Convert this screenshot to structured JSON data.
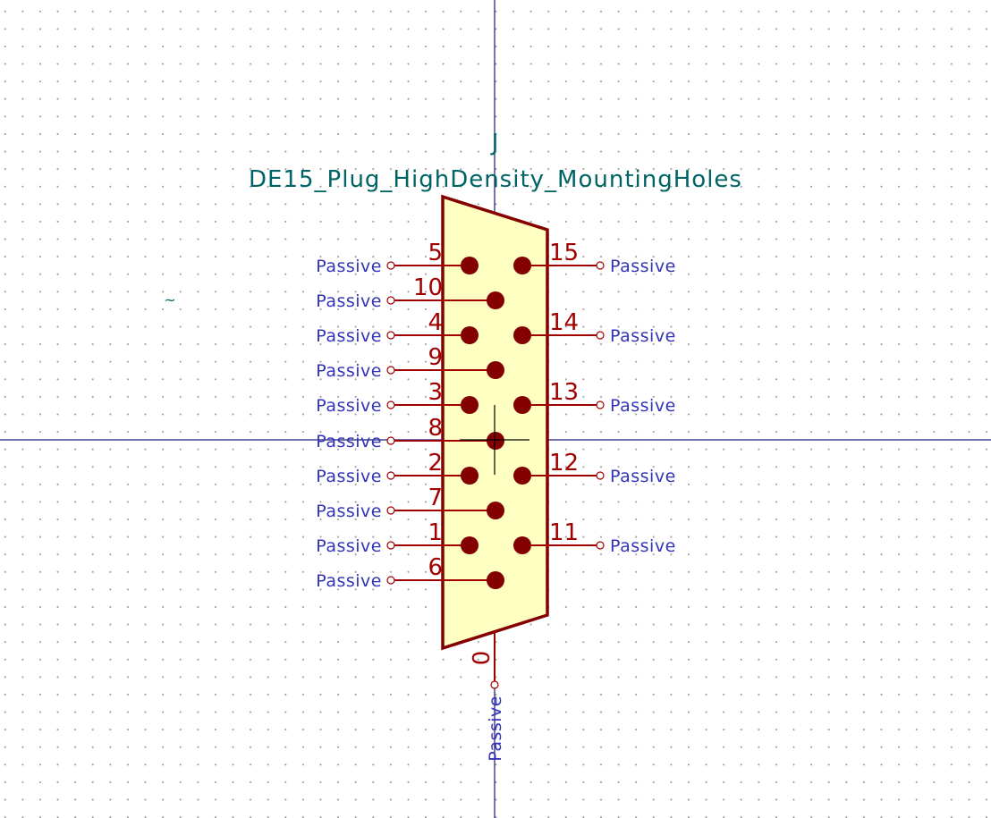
{
  "symbol": {
    "reference": "J",
    "value": "DE15_Plug_HighDensity_MountingHoles",
    "marker": "~",
    "body_fill": "#ffffc2",
    "outline_color": "#840000",
    "pin_color": "#a00000",
    "type_color": "#3333b8",
    "field_color": "#006464",
    "axis_color": "#1a1a7a"
  },
  "left_pins": [
    {
      "number": "5",
      "type": "Passive"
    },
    {
      "number": "10",
      "type": "Passive"
    },
    {
      "number": "4",
      "type": "Passive"
    },
    {
      "number": "9",
      "type": "Passive"
    },
    {
      "number": "3",
      "type": "Passive"
    },
    {
      "number": "8",
      "type": "Passive"
    },
    {
      "number": "2",
      "type": "Passive"
    },
    {
      "number": "7",
      "type": "Passive"
    },
    {
      "number": "1",
      "type": "Passive"
    },
    {
      "number": "6",
      "type": "Passive"
    }
  ],
  "right_pins": [
    {
      "number": "15",
      "type": "Passive"
    },
    {
      "number": "14",
      "type": "Passive"
    },
    {
      "number": "13",
      "type": "Passive"
    },
    {
      "number": "12",
      "type": "Passive"
    },
    {
      "number": "11",
      "type": "Passive"
    }
  ],
  "bottom_pin": {
    "number": "0",
    "type": "Passive"
  }
}
